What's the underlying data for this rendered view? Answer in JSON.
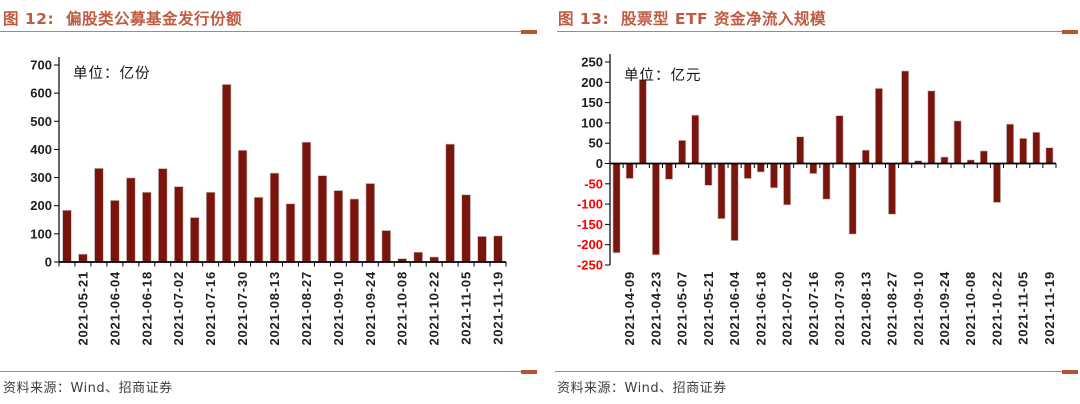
{
  "colors": {
    "accent_title": "#BF5B41",
    "rule_line": "#C97B5F",
    "rule_end": "#B5542F",
    "bar": "#7A150D",
    "negative_tick": "#FF0000",
    "axis": "#000000"
  },
  "panels": [
    {
      "title": "图 12:  偏股类公募基金发行份额",
      "source": "资料来源：Wind、招商证券",
      "chart_data": {
        "type": "bar",
        "title": "偏股类公募基金发行份额",
        "unit_label": "单位：亿份",
        "ylim": [
          0,
          700
        ],
        "ytick_step": 100,
        "bar_color": "#7A150D",
        "negative_tick_color": "#FF0000",
        "grid": false,
        "legend": "none",
        "values": [
          184,
          28,
          333,
          219,
          299,
          248,
          332,
          268,
          158,
          248,
          631,
          397,
          230,
          316,
          207,
          426,
          307,
          254,
          224,
          279,
          112,
          12,
          35,
          18,
          419,
          239,
          91,
          93
        ],
        "tick_labels": [
          "2021-05-21",
          "2021-06-04",
          "2021-06-18",
          "2021-07-02",
          "2021-07-16",
          "2021-07-30",
          "2021-08-13",
          "2021-08-27",
          "2021-09-10",
          "2021-09-24",
          "2021-10-08",
          "2021-10-22",
          "2021-11-05",
          "2021-11-19"
        ],
        "label_start_index": 1,
        "label_step": 2
      }
    },
    {
      "title": "图 13:  股票型 ETF 资金净流入规模",
      "source": "资料来源：Wind、招商证券",
      "chart_data": {
        "type": "bar",
        "title": "股票型 ETF 资金净流入规模",
        "unit_label": "单位：亿元",
        "ylim": [
          -250,
          250
        ],
        "ytick_step": 50,
        "bar_color": "#7A150D",
        "negative_tick_color": "#FF0000",
        "grid": false,
        "legend": "none",
        "values": [
          -220,
          -37,
          207,
          -225,
          -39,
          57,
          119,
          -54,
          -136,
          -190,
          -37,
          -21,
          -60,
          -102,
          66,
          -25,
          -88,
          118,
          -174,
          33,
          185,
          -125,
          228,
          7,
          179,
          16,
          105,
          9,
          31,
          -96,
          97,
          62,
          77,
          39
        ],
        "tick_labels": [
          "2021-04-09",
          "2021-04-23",
          "2021-05-07",
          "2021-05-21",
          "2021-06-04",
          "2021-06-18",
          "2021-07-02",
          "2021-07-16",
          "2021-07-30",
          "2021-08-13",
          "2021-08-27",
          "2021-09-10",
          "2021-09-24",
          "2021-10-08",
          "2021-10-22",
          "2021-11-05",
          "2021-11-19"
        ],
        "label_start_index": 1,
        "label_step": 2
      }
    }
  ]
}
